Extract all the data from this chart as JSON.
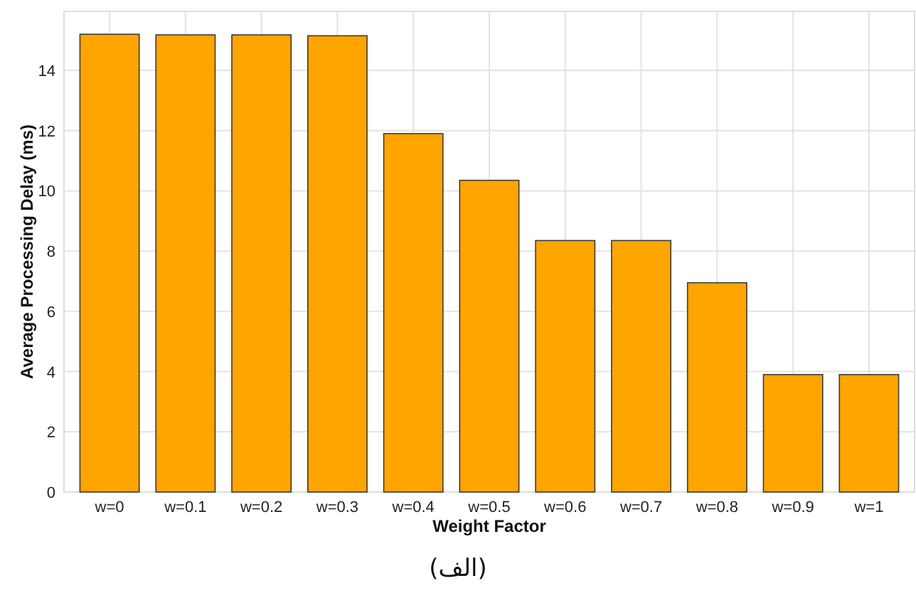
{
  "chart_data": {
    "type": "bar",
    "categories": [
      "w=0",
      "w=0.1",
      "w=0.2",
      "w=0.3",
      "w=0.4",
      "w=0.5",
      "w=0.6",
      "w=0.7",
      "w=0.8",
      "w=0.9",
      "w=1"
    ],
    "values": [
      15.2,
      15.18,
      15.18,
      15.15,
      11.9,
      10.35,
      8.35,
      8.35,
      6.95,
      3.9,
      3.9
    ],
    "color": "#ffa500",
    "xlabel": "Weight Factor",
    "ylabel": "Average Processing Delay (ms)",
    "ylim": [
      0,
      15.96
    ],
    "yticks": [
      0,
      2,
      4,
      6,
      8,
      10,
      12,
      14
    ],
    "grid": true,
    "annotations": [
      "(الف)"
    ]
  }
}
